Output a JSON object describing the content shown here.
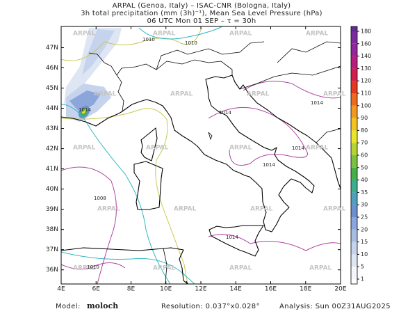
{
  "header": {
    "line1": "ARPAL (Genoa, Italy)  –  ISAC-CNR (Bologna, Italy)",
    "line2": "3h total precipitation (mm (3h)⁻¹), Mean Sea Level Pressure (hPa)",
    "line3": "06 UTC Mon 01 SEP  –  τ = 30h"
  },
  "map": {
    "xlim": [
      4,
      20
    ],
    "ylim": [
      35.3,
      48.05
    ],
    "xticks": [
      {
        "value": 4,
        "label": "4E"
      },
      {
        "value": 6,
        "label": "6E"
      },
      {
        "value": 8,
        "label": "8E"
      },
      {
        "value": 10,
        "label": "10E"
      },
      {
        "value": 12,
        "label": "12E"
      },
      {
        "value": 14,
        "label": "14E"
      },
      {
        "value": 16,
        "label": "16E"
      },
      {
        "value": 18,
        "label": "18E"
      },
      {
        "value": 20,
        "label": "20E"
      }
    ],
    "yticks": [
      {
        "value": 36,
        "label": "36N"
      },
      {
        "value": 37,
        "label": "37N"
      },
      {
        "value": 38,
        "label": "38N"
      },
      {
        "value": 39,
        "label": "39N"
      },
      {
        "value": 40,
        "label": "40N"
      },
      {
        "value": 41,
        "label": "41N"
      },
      {
        "value": 42,
        "label": "42N"
      },
      {
        "value": 43,
        "label": "43N"
      },
      {
        "value": 44,
        "label": "44N"
      },
      {
        "value": 45,
        "label": "45N"
      },
      {
        "value": 46,
        "label": "46N"
      },
      {
        "value": 47,
        "label": "47N"
      }
    ],
    "watermark": "ARPAL",
    "isobar_labels": [
      "1010",
      "1010",
      "1014",
      "1014",
      "1014",
      "1014",
      "1014",
      "1008",
      "1014",
      "1010"
    ]
  },
  "colorbar": {
    "levels": [
      1,
      5,
      10,
      15,
      20,
      25,
      30,
      35,
      40,
      50,
      60,
      70,
      80,
      90,
      100,
      110,
      120,
      130,
      140,
      160,
      180
    ],
    "colors": [
      "#f4f6fb",
      "#dfe6f3",
      "#c6d3ec",
      "#a9bde3",
      "#8aa6da",
      "#6c8fd0",
      "#4f9fbf",
      "#3cae8e",
      "#45b04a",
      "#7cc242",
      "#b5d334",
      "#e9e52a",
      "#f3c322",
      "#f29a1f",
      "#ee6a1f",
      "#e4381f",
      "#d1204f",
      "#b61f7c",
      "#93269a",
      "#7a2c9e",
      "#642c8f"
    ]
  },
  "footer": {
    "model_label": "Model:",
    "model": "moloch",
    "resolution": "Resolution: 0.037°x0.028°",
    "analysis": "Analysis: Sun 00Z31AUG2025"
  }
}
